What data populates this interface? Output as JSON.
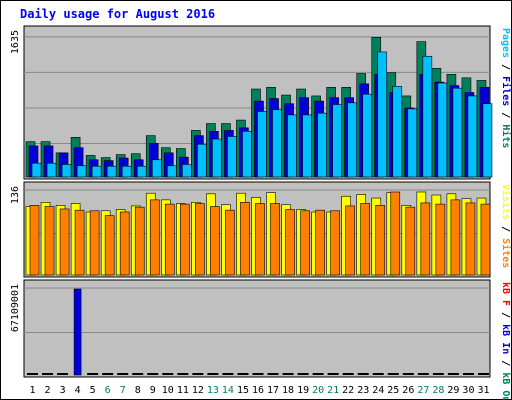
{
  "chart_data": {
    "type": "bar",
    "title": "Daily usage for August 2016",
    "categories": [
      "1",
      "2",
      "3",
      "4",
      "5",
      "6",
      "7",
      "8",
      "9",
      "10",
      "11",
      "12",
      "13",
      "14",
      "15",
      "16",
      "17",
      "18",
      "19",
      "20",
      "21",
      "22",
      "23",
      "24",
      "25",
      "26",
      "27",
      "28",
      "29",
      "30",
      "31"
    ],
    "weekend_days": [
      "6",
      "7",
      "13",
      "14",
      "20",
      "21",
      "27",
      "28"
    ],
    "colors": {
      "hits": "#00805c",
      "files": "#0000d8",
      "pages": "#00c0ff",
      "visits": "#ffff00",
      "sites": "#ff8000",
      "kbytes": "#ff0000",
      "kbin": "#0000d8",
      "kbout": "#00805c",
      "weekday_label": "#000000",
      "weekend_label": "#00805c",
      "title": "#0000ff",
      "panel_bg": "#c0c0c0"
    },
    "panels": [
      {
        "id": "top",
        "ymax_label": "1635",
        "ymax": 1635,
        "axis_label": [
          {
            "text": "Pages",
            "color": "#00c0ff"
          },
          {
            "text": " / ",
            "color": "#000000"
          },
          {
            "text": "Files",
            "color": "#0000d8"
          },
          {
            "text": " / ",
            "color": "#000000"
          },
          {
            "text": "Hits",
            "color": "#00805c"
          }
        ],
        "series": [
          {
            "key": "hits",
            "values": [
              410,
              410,
              280,
              460,
              250,
              225,
              260,
              270,
              480,
              340,
              330,
              540,
              620,
              620,
              660,
              1020,
              1040,
              950,
              1020,
              940,
              1040,
              1040,
              1200,
              1620,
              1210,
              940,
              1570,
              1260,
              1190,
              1150,
              1120
            ]
          },
          {
            "key": "files",
            "values": [
              360,
              360,
              280,
              340,
              200,
              190,
              220,
              200,
              390,
              280,
              230,
              480,
              530,
              540,
              570,
              880,
              910,
              850,
              920,
              880,
              920,
              920,
              1080,
              1190,
              980,
              800,
              1190,
              1100,
              1060,
              980,
              1040
            ]
          },
          {
            "key": "pages",
            "values": [
              160,
              160,
              145,
              130,
              125,
              125,
              125,
              125,
              200,
              130,
              145,
              380,
              440,
              470,
              530,
              760,
              780,
              720,
              720,
              740,
              840,
              860,
              960,
              1450,
              1050,
              790,
              1400,
              1090,
              1030,
              940,
              850
            ]
          }
        ]
      },
      {
        "id": "middle",
        "ymax_label": "136",
        "ymax": 136,
        "axis_label": [
          {
            "text": "Visits",
            "color": "#ffff00"
          },
          {
            "text": " / ",
            "color": "#000000"
          },
          {
            "text": "Sites",
            "color": "#ff8000"
          }
        ],
        "series": [
          {
            "key": "visits",
            "values": [
              113,
              120,
              115,
              118,
              104,
              106,
              108,
              114,
              135,
              124,
              118,
              120,
              134,
              116,
              135,
              128,
              136,
              116,
              108,
              104,
              104,
              130,
              133,
              127,
              136,
              115,
              137,
              132,
              134,
              126,
              127
            ]
          },
          {
            "key": "sites",
            "values": [
              115,
              113,
              109,
              107,
              106,
              98,
              104,
              112,
              124,
              117,
              117,
              118,
              113,
              107,
              120,
              118,
              118,
              108,
              106,
              107,
              106,
              114,
              118,
              115,
              137,
              112,
              119,
              117,
              124,
              119,
              117
            ]
          }
        ]
      },
      {
        "id": "bottom",
        "ymax_label": "67109001",
        "ymax": 67109001,
        "axis_label": [
          {
            "text": "kB F",
            "color": "#ff0000"
          },
          {
            "text": " / ",
            "color": "#000000"
          },
          {
            "text": "kB In",
            "color": "#0000d8"
          },
          {
            "text": " / ",
            "color": "#000000"
          },
          {
            "text": "kB Out",
            "color": "#00805c"
          }
        ],
        "series": [
          {
            "key": "kbin",
            "values": [
              0,
              0,
              0,
              67109001,
              0,
              0,
              0,
              0,
              0,
              0,
              0,
              0,
              0,
              0,
              0,
              0,
              0,
              0,
              0,
              0,
              0,
              0,
              0,
              0,
              0,
              0,
              0,
              0,
              0,
              0,
              0
            ]
          }
        ]
      }
    ]
  }
}
